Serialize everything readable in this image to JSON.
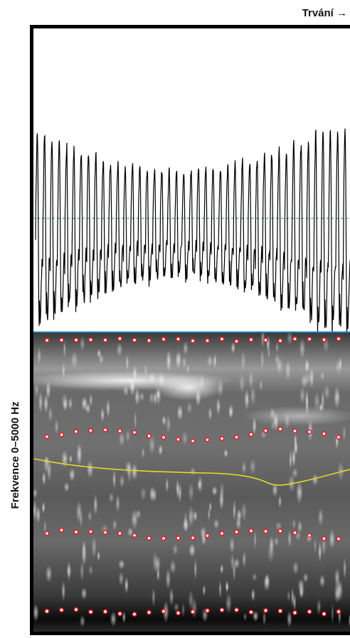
{
  "header": {
    "duration_label": "Trvání →"
  },
  "axis": {
    "frequency_label": "Frekvence 0–5000 Hz"
  }
}
